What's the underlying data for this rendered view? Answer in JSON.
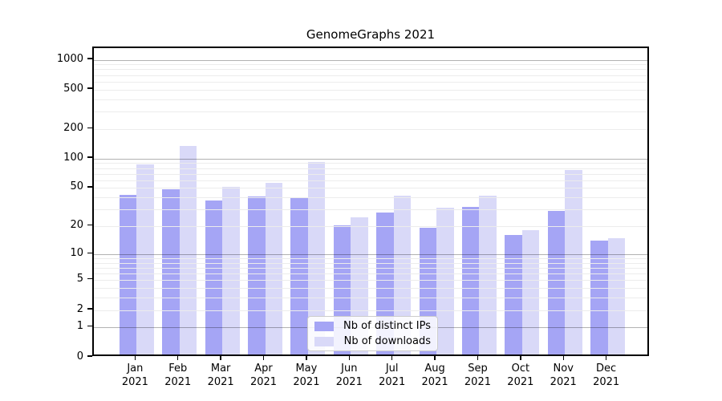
{
  "title": "GenomeGraphs 2021",
  "chart_data": {
    "type": "bar",
    "title": "GenomeGraphs 2021",
    "yscale": "log1p",
    "grid": true,
    "legend_position": "inside plot, bottom center",
    "ylabel": "",
    "xlabel": "",
    "ylim": [
      0,
      1090
    ],
    "y_ticks": [
      0,
      1,
      2,
      5,
      10,
      20,
      50,
      100,
      200,
      500,
      1000
    ],
    "months": [
      "Jan",
      "Feb",
      "Mar",
      "Apr",
      "May",
      "Jun",
      "Jul",
      "Aug",
      "Sep",
      "Oct",
      "Nov",
      "Dec"
    ],
    "year": "2021",
    "categories": [
      "Jan 2021",
      "Feb 2021",
      "Mar 2021",
      "Apr 2021",
      "May 2021",
      "Jun 2021",
      "Jul 2021",
      "Aug 2021",
      "Sep 2021",
      "Oct 2021",
      "Nov 2021",
      "Dec 2021"
    ],
    "series": [
      {
        "name": "Nb of distinct IPs",
        "color": "#a5a5f5",
        "values": [
          40,
          45,
          35,
          38,
          37,
          19,
          26,
          18,
          30,
          15,
          27,
          13
        ]
      },
      {
        "name": "Nb of downloads",
        "color": "#d9d9f8",
        "values": [
          82,
          125,
          48,
          53,
          87,
          23,
          39,
          29,
          39,
          17,
          71,
          14
        ]
      }
    ]
  },
  "colors": {
    "major_grid": "#b3b3b3",
    "minor_grid": "#ececec",
    "axis": "#000000"
  }
}
